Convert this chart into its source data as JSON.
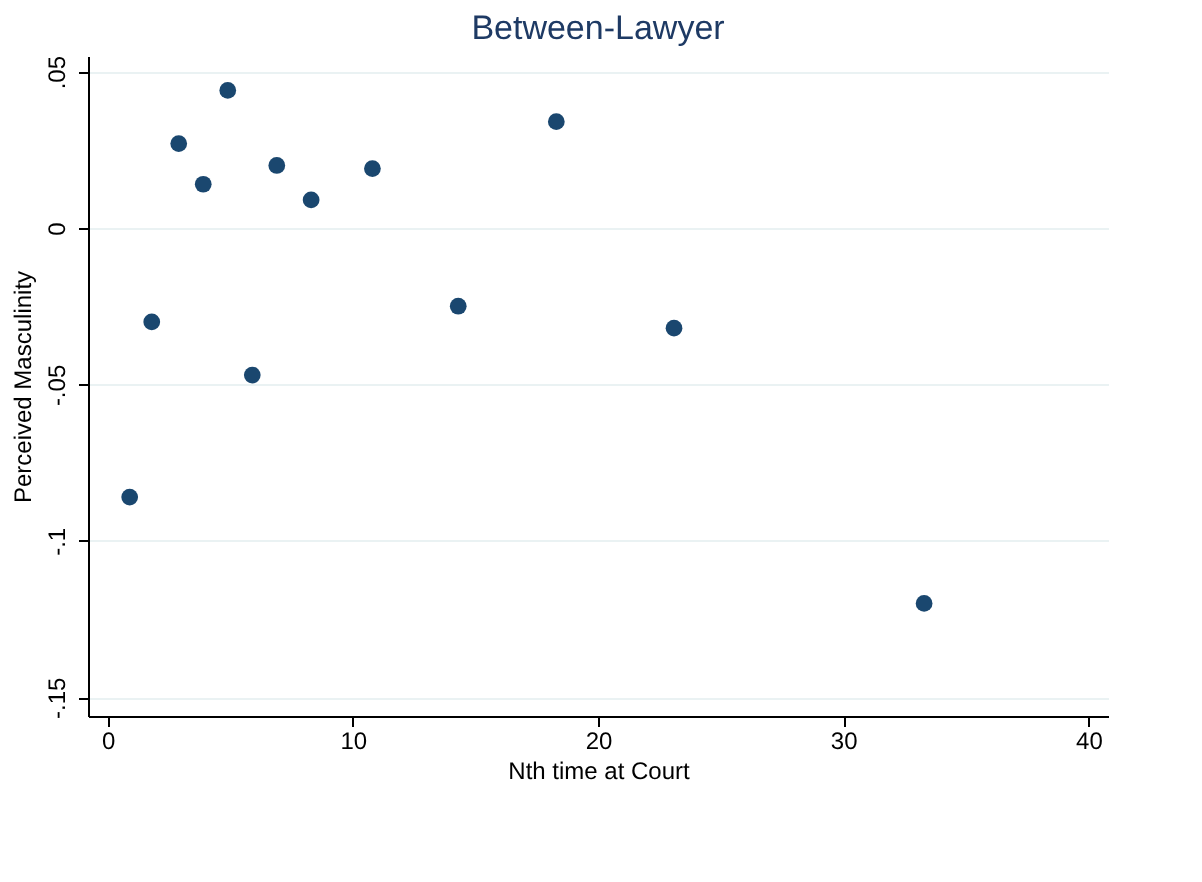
{
  "chart_data": {
    "type": "scatter",
    "title": "Between-Lawyer",
    "xlabel": "Nth time at Court",
    "ylabel": "Perceived Masculinity",
    "x": [
      0.9,
      1.8,
      2.9,
      3.9,
      4.9,
      5.9,
      6.9,
      8.3,
      10.8,
      14.3,
      18.3,
      23.1,
      33.3
    ],
    "series": [
      {
        "color": "#1a476f",
        "values": [
          -0.086,
          -0.03,
          0.027,
          0.014,
          0.044,
          -0.047,
          0.02,
          0.009,
          0.019,
          -0.025,
          0.034,
          -0.032,
          -0.12
        ]
      }
    ],
    "xlim": [
      -0.8,
      40.8
    ],
    "xticks": [
      0,
      10,
      20,
      30,
      40
    ],
    "ylim": [
      -0.156,
      0.055
    ],
    "yticks": [
      {
        "value": -0.15,
        "label": "-.15"
      },
      {
        "value": -0.1,
        "label": "-.1"
      },
      {
        "value": -0.05,
        "label": "-.05"
      },
      {
        "value": 0,
        "label": "0"
      },
      {
        "value": 0.05,
        "label": ".05"
      }
    ],
    "grid": "y",
    "marker": "circle"
  }
}
